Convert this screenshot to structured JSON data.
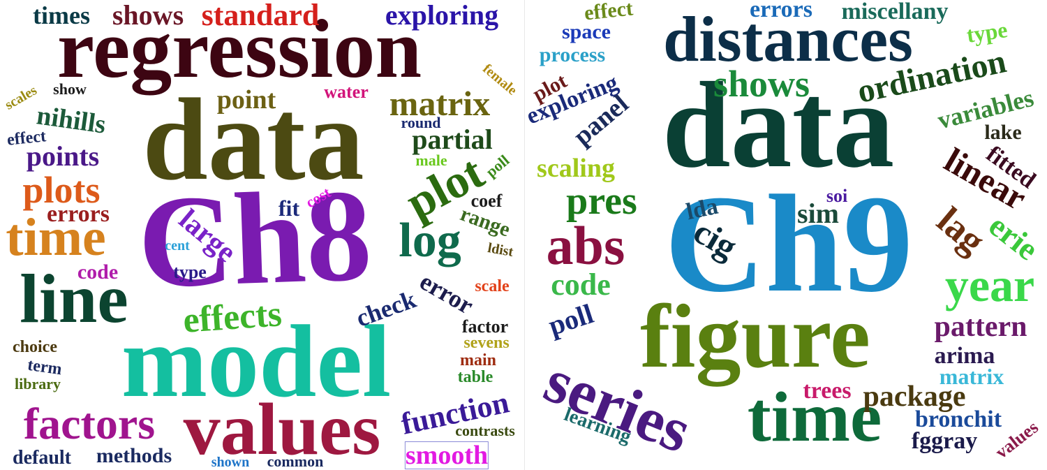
{
  "clouds": [
    {
      "name": "Ch8",
      "words": [
        {
          "text": "Ch8",
          "color": "#7a1bb0"
        },
        {
          "text": "model",
          "color": "#14bfa0"
        },
        {
          "text": "data",
          "color": "#4c4a12"
        },
        {
          "text": "regression",
          "color": "#3d0512"
        },
        {
          "text": "values",
          "color": "#9e1840"
        },
        {
          "text": "line",
          "color": "#0c4430"
        },
        {
          "text": "time",
          "color": "#d6821e"
        },
        {
          "text": "factors",
          "color": "#a0148e"
        },
        {
          "text": "log",
          "color": "#0f6a4c"
        },
        {
          "text": "plot",
          "color": "#2b6b10"
        },
        {
          "text": "effects",
          "color": "#3db42a"
        },
        {
          "text": "matrix",
          "color": "#6a6410"
        },
        {
          "text": "plots",
          "color": "#dd5a1a"
        },
        {
          "text": "function",
          "color": "#3a1a98"
        },
        {
          "text": "standard",
          "color": "#d5201c"
        },
        {
          "text": "exploring",
          "color": "#2a14a8"
        },
        {
          "text": "shows",
          "color": "#6a1626"
        },
        {
          "text": "times",
          "color": "#0a3a46"
        },
        {
          "text": "point",
          "color": "#6c6014"
        },
        {
          "text": "partial",
          "color": "#1e4a1a"
        },
        {
          "text": "points",
          "color": "#4a1888"
        },
        {
          "text": "nihills",
          "color": "#1c5a3a"
        },
        {
          "text": "large",
          "color": "#7a22c8"
        },
        {
          "text": "errors",
          "color": "#9a1e1e"
        },
        {
          "text": "check",
          "color": "#1a2a70"
        },
        {
          "text": "error",
          "color": "#1c1c4c"
        },
        {
          "text": "range",
          "color": "#3a6a20"
        },
        {
          "text": "smooth",
          "color": "#e21ae2"
        },
        {
          "text": "methods",
          "color": "#1a2a60"
        },
        {
          "text": "default",
          "color": "#1a2a60"
        },
        {
          "text": "code",
          "color": "#b01caa"
        },
        {
          "text": "fit",
          "color": "#1c2a7a"
        },
        {
          "text": "water",
          "color": "#d2147a"
        },
        {
          "text": "coef",
          "color": "#1c1c1c"
        },
        {
          "text": "factor",
          "color": "#1c1c1c"
        },
        {
          "text": "sevens",
          "color": "#b0a21a"
        },
        {
          "text": "main",
          "color": "#9e2c10"
        },
        {
          "text": "table",
          "color": "#2a8a2a"
        },
        {
          "text": "contrasts",
          "color": "#3a4a10"
        },
        {
          "text": "common",
          "color": "#1a2a60"
        },
        {
          "text": "shown",
          "color": "#1e74c8"
        },
        {
          "text": "library",
          "color": "#4a6a10"
        },
        {
          "text": "term",
          "color": "#1c2a60"
        },
        {
          "text": "choice",
          "color": "#4c3a10"
        },
        {
          "text": "effect",
          "color": "#1c2a60"
        },
        {
          "text": "show",
          "color": "#1c1c1c"
        },
        {
          "text": "scales",
          "color": "#9a8a10"
        },
        {
          "text": "type",
          "color": "#2a1a8a"
        },
        {
          "text": "cent",
          "color": "#2aa0d8"
        },
        {
          "text": "cost",
          "color": "#e21ae2"
        },
        {
          "text": "round",
          "color": "#1a2a70"
        },
        {
          "text": "male",
          "color": "#6ac81e"
        },
        {
          "text": "poll",
          "color": "#3a8a1a"
        },
        {
          "text": "ldist",
          "color": "#5a4a10"
        },
        {
          "text": "scale",
          "color": "#e2421a"
        },
        {
          "text": "female",
          "color": "#b08a10"
        }
      ]
    },
    {
      "name": "Ch9",
      "words": [
        {
          "text": "Ch9",
          "color": "#1a8ac8"
        },
        {
          "text": "data",
          "color": "#0a4034"
        },
        {
          "text": "figure",
          "color": "#5a8010"
        },
        {
          "text": "time",
          "color": "#0e6a3a"
        },
        {
          "text": "distances",
          "color": "#0c2e48"
        },
        {
          "text": "series",
          "color": "#4a1a80"
        },
        {
          "text": "abs",
          "color": "#8a1040"
        },
        {
          "text": "year",
          "color": "#3ad84a"
        },
        {
          "text": "pres",
          "color": "#1a7a1a"
        },
        {
          "text": "shows",
          "color": "#1a8a3a"
        },
        {
          "text": "ordination",
          "color": "#1a4a1a"
        },
        {
          "text": "linear",
          "color": "#3a0a0a"
        },
        {
          "text": "lag",
          "color": "#6a3010"
        },
        {
          "text": "erie",
          "color": "#3ac83a"
        },
        {
          "text": "pattern",
          "color": "#6a1a6a"
        },
        {
          "text": "package",
          "color": "#4a3a10"
        },
        {
          "text": "arima",
          "color": "#2a1a50"
        },
        {
          "text": "matrix",
          "color": "#3ab8d8"
        },
        {
          "text": "trees",
          "color": "#c81a6a"
        },
        {
          "text": "bronchit",
          "color": "#1a4a9a"
        },
        {
          "text": "fggray",
          "color": "#1a1a4a"
        },
        {
          "text": "values",
          "color": "#8a1a4a"
        },
        {
          "text": "learning",
          "color": "#1a6a6a"
        },
        {
          "text": "poll",
          "color": "#1a2a7a"
        },
        {
          "text": "code",
          "color": "#3ab84a"
        },
        {
          "text": "cig",
          "color": "#0a2a3a"
        },
        {
          "text": "lda",
          "color": "#1a4a6a"
        },
        {
          "text": "sim",
          "color": "#1a4a3a"
        },
        {
          "text": "soi",
          "color": "#4a1aa0"
        },
        {
          "text": "scaling",
          "color": "#a0c81a"
        },
        {
          "text": "panel",
          "color": "#1a2a5a"
        },
        {
          "text": "exploring",
          "color": "#1a2a7a"
        },
        {
          "text": "plot",
          "color": "#6a1a1a"
        },
        {
          "text": "process",
          "color": "#2aa0c8"
        },
        {
          "text": "space",
          "color": "#1a3ab8"
        },
        {
          "text": "effect",
          "color": "#6a8a1a"
        },
        {
          "text": "errors",
          "color": "#1a6ab8"
        },
        {
          "text": "miscellany",
          "color": "#1a6a5a"
        },
        {
          "text": "type",
          "color": "#6ad83a"
        },
        {
          "text": "variables",
          "color": "#3a8a3a"
        },
        {
          "text": "lake",
          "color": "#2a2a1a"
        },
        {
          "text": "fitted",
          "color": "#3a0a20"
        }
      ]
    }
  ]
}
